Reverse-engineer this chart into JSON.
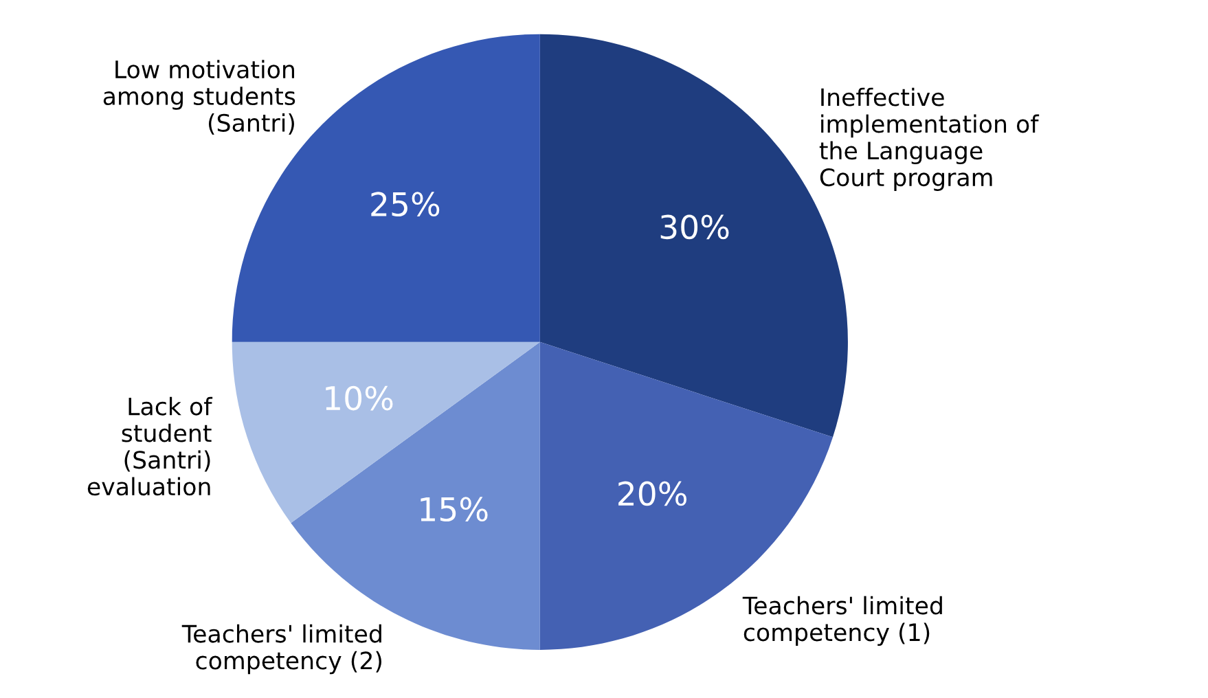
{
  "chart_data": {
    "type": "pie",
    "categories": [
      "Ineffective\nimplementation of\nthe Language\nCourt program",
      "Teachers' limited\ncompetency (1)",
      "Teachers' limited\ncompetency (2)",
      "Lack of\nstudent\n(Santri)\nevaluation",
      "Low motivation\namong students\n(Santri)"
    ],
    "values": [
      30,
      20,
      15,
      10,
      25
    ],
    "value_labels": [
      "30%",
      "20%",
      "15%",
      "10%",
      "25%"
    ],
    "colors": [
      "#1f3d7f",
      "#4461b3",
      "#6d8cd1",
      "#a9bfe6",
      "#3558b3"
    ],
    "legend": false
  }
}
